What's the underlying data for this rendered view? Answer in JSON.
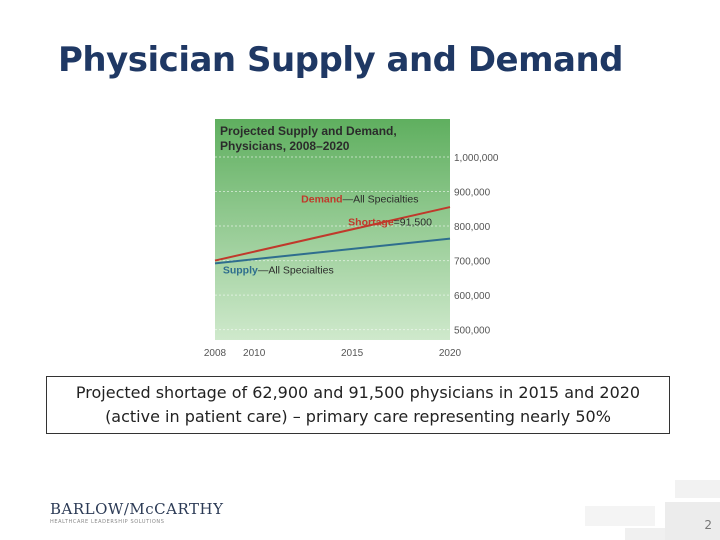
{
  "slide": {
    "title": "Physician Supply and Demand",
    "caption": "Projected shortage of 62,900 and 91,500 physicians in 2015 and 2020 (active in patient care) – primary care representing nearly 50%",
    "logo_text": "BARLOW/McCARTHY",
    "logo_tagline": "HEALTHCARE LEADERSHIP SOLUTIONS",
    "page_number": "2"
  },
  "chart_data": {
    "type": "line",
    "title_line1": "Projected Supply and Demand,",
    "title_line2": "Physicians, 2008–2020",
    "x_ticks": [
      {
        "value": 2008,
        "label": "2008"
      },
      {
        "value": 2010,
        "label": "2010"
      },
      {
        "value": 2015,
        "label": "2015"
      },
      {
        "value": 2020,
        "label": "2020"
      }
    ],
    "y_ticks": [
      {
        "value": 500000,
        "label": "500,000"
      },
      {
        "value": 600000,
        "label": "600,000"
      },
      {
        "value": 700000,
        "label": "700,000"
      },
      {
        "value": 800000,
        "label": "800,000"
      },
      {
        "value": 900000,
        "label": "900,000"
      },
      {
        "value": 1000000,
        "label": "1,000,000"
      }
    ],
    "xlim": [
      2008,
      2020
    ],
    "ylim": [
      470000,
      1110000
    ],
    "series": [
      {
        "name": "Demand",
        "label_bold": "Demand",
        "label_rest": "—All Specialties",
        "color": "#c0392b",
        "x": [
          2008,
          2020
        ],
        "y": [
          700000,
          855000
        ]
      },
      {
        "name": "Supply",
        "label_bold": "Supply",
        "label_rest": "—All Specialties",
        "color": "#2f6e8e",
        "x": [
          2008,
          2020
        ],
        "y": [
          692000,
          763500
        ]
      }
    ],
    "annotation": {
      "bold": "Shortage",
      "rest": "=91,500",
      "color": "#c0392b"
    },
    "colors": {
      "bg_top": "#5faf5f",
      "bg_bottom": "#cfe9cc",
      "text": "#2b2b2b",
      "tick_text": "#555555"
    }
  }
}
